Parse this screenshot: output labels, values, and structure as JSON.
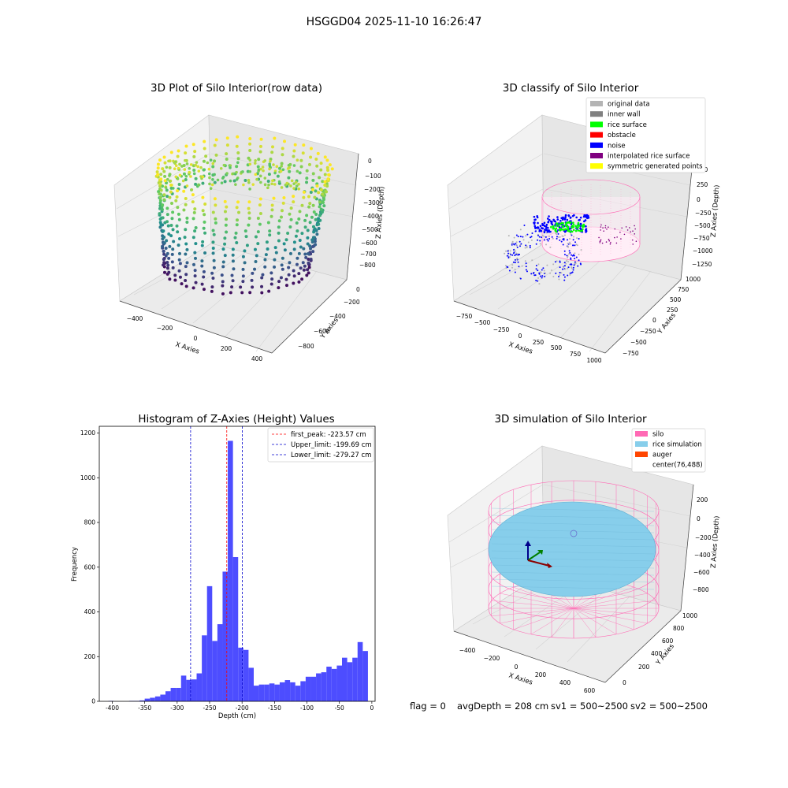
{
  "figure": {
    "suptitle": "HSGGD04 2025-11-10 16:26:47",
    "footer": {
      "flag": "flag = 0",
      "avg": "avgDepth = 208 cm",
      "sv1": "sv1 = 500~2500",
      "sv2": "sv2 = 500~2500"
    }
  },
  "colors": {
    "hist_bar": "#4d4dff",
    "peak_line": "#ff0000",
    "limit_line": "#0000cc",
    "pane_left": "#f2f2f2",
    "pane_right": "#e6e6e6",
    "pane_floor": "#ebebeb",
    "silo": "#ff69b4",
    "rice": "#87ceeb",
    "auger": "#ff4500"
  },
  "chart_data": [
    {
      "type": "scatter",
      "subtype": "3d",
      "title": "3D Plot of Silo Interior(row data)",
      "xlabel": "X Axies",
      "ylabel": "Y Axies",
      "zlabel": "Z Axies (Depth)",
      "xticks": [
        "−400",
        "−200",
        "0",
        "200",
        "400"
      ],
      "yticks": [
        "−800",
        "−600",
        "−400",
        "−200",
        "0"
      ],
      "zticks": [
        "0",
        "−100",
        "−200",
        "−300",
        "−400",
        "−500",
        "−600",
        "−700",
        "−800"
      ],
      "colormap": "viridis"
    },
    {
      "type": "scatter",
      "subtype": "3d",
      "title": "3D classify of Silo Interior",
      "xlabel": "X Axies",
      "ylabel": "Y Axies",
      "zlabel": "Z Axies (Depth)",
      "xticks": [
        "−750",
        "−500",
        "−250",
        "0",
        "250",
        "500",
        "750",
        "1000"
      ],
      "yticks": [
        "−750",
        "−500",
        "−250",
        "0",
        "250",
        "500",
        "750",
        "1000"
      ],
      "zticks": [
        "500",
        "250",
        "0",
        "−250",
        "−500",
        "−750",
        "−1000",
        "−1250"
      ],
      "legend": [
        {
          "label": "original data",
          "color": "#b4b4b4"
        },
        {
          "label": "inner wall",
          "color": "#808080"
        },
        {
          "label": "rice surface",
          "color": "#00ff00"
        },
        {
          "label": "obstacle",
          "color": "#ff0000"
        },
        {
          "label": "noise",
          "color": "#0000ff"
        },
        {
          "label": "interpolated rice surface",
          "color": "#800080"
        },
        {
          "label": "symmetric generated points",
          "color": "#ffff00"
        }
      ],
      "legend_position": "top-right"
    },
    {
      "type": "bar",
      "subtype": "histogram",
      "title": "Histogram of Z-Axies (Height) Values",
      "xlabel": "Depth (cm)",
      "ylabel": "Frequency",
      "xlim": [
        -420,
        5
      ],
      "ylim": [
        0,
        1230
      ],
      "xticks": [
        -400,
        -350,
        -300,
        -250,
        -200,
        -150,
        -100,
        -50,
        0
      ],
      "yticks": [
        0,
        200,
        400,
        600,
        800,
        1000,
        1200
      ],
      "bin_start": -406,
      "bin_width": 8,
      "values": [
        2,
        0,
        0,
        0,
        2,
        2,
        4,
        12,
        16,
        22,
        30,
        45,
        60,
        60,
        115,
        96,
        98,
        125,
        295,
        515,
        270,
        345,
        580,
        1165,
        645,
        240,
        230,
        150,
        70,
        75,
        75,
        80,
        75,
        85,
        95,
        85,
        70,
        90,
        110,
        110,
        125,
        130,
        155,
        145,
        160,
        195,
        175,
        195,
        265,
        225
      ],
      "lines": [
        {
          "label": "first_peak: -223.57 cm",
          "x": -223.57,
          "color": "#ff0000"
        },
        {
          "label": "Upper_limit: -199.69 cm",
          "x": -199.69,
          "color": "#0000cc"
        },
        {
          "label": "Lower_limit: -279.27 cm",
          "x": -279.27,
          "color": "#0000cc"
        }
      ],
      "legend_position": "top-right"
    },
    {
      "type": "scatter",
      "subtype": "3d-surface",
      "title": "3D simulation of Silo Interior",
      "xlabel": "X Axies",
      "ylabel": "Y Axies",
      "zlabel": "Z Axies (Depth)",
      "xticks": [
        "−400",
        "−200",
        "0",
        "200",
        "400",
        "600"
      ],
      "yticks": [
        "0",
        "200",
        "400",
        "600",
        "800",
        "1000"
      ],
      "zticks": [
        "200",
        "0",
        "−200",
        "−400",
        "−600",
        "−800"
      ],
      "legend": [
        {
          "label": "silo",
          "color": "#ff69b4"
        },
        {
          "label": "rice simulation",
          "color": "#87ceeb"
        },
        {
          "label": "auger",
          "color": "#ff4500"
        },
        {
          "label": "center(76,488)",
          "color": ""
        }
      ],
      "legend_position": "top-right"
    }
  ]
}
